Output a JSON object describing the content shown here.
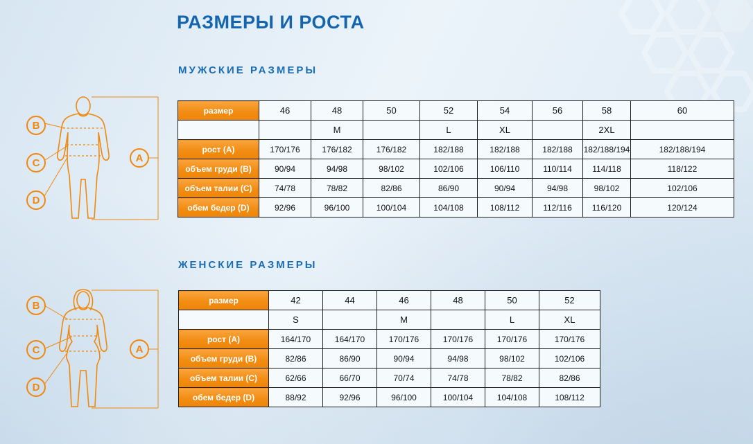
{
  "page": {
    "title": "РАЗМЕРЫ И РОСТА",
    "mens_heading": "МУЖСКИЕ РАЗМЕРЫ",
    "womens_heading": "ЖЕНСКИЕ РАЗМЕРЫ"
  },
  "figure_labels": {
    "a": "A",
    "b": "B",
    "c": "C",
    "d": "D"
  },
  "colors": {
    "heading_blue": "#1565ae",
    "accent_orange": "#f7941e",
    "cell_border": "#1d1d1d"
  },
  "mens_table": {
    "header_label": "размер",
    "sizes": [
      "46",
      "48",
      "50",
      "52",
      "54",
      "56",
      "58",
      "60"
    ],
    "letters": [
      "",
      "M",
      "",
      "L",
      "XL",
      "",
      "2XL",
      ""
    ],
    "rows": [
      {
        "label": "рост (A)",
        "values": [
          "170/176",
          "176/182",
          "176/182",
          "182/188",
          "182/188",
          "182/188",
          "182/188/194",
          "182/188/194"
        ]
      },
      {
        "label": "объем груди (B)",
        "values": [
          "90/94",
          "94/98",
          "98/102",
          "102/106",
          "106/110",
          "110/114",
          "114/118",
          "118/122"
        ]
      },
      {
        "label": "объем талии (C)",
        "values": [
          "74/78",
          "78/82",
          "82/86",
          "86/90",
          "90/94",
          "94/98",
          "98/102",
          "102/106"
        ]
      },
      {
        "label": "обем бедер (D)",
        "values": [
          "92/96",
          "96/100",
          "100/104",
          "104/108",
          "108/112",
          "112/116",
          "116/120",
          "120/124"
        ]
      }
    ]
  },
  "womens_table": {
    "header_label": "размер",
    "sizes": [
      "42",
      "44",
      "46",
      "48",
      "50",
      "52"
    ],
    "letters": [
      "S",
      "",
      "M",
      "",
      "L",
      "XL"
    ],
    "rows": [
      {
        "label": "рост (A)",
        "values": [
          "164/170",
          "164/170",
          "170/176",
          "170/176",
          "170/176",
          "170/176"
        ]
      },
      {
        "label": "объем груди (B)",
        "values": [
          "82/86",
          "86/90",
          "90/94",
          "94/98",
          "98/102",
          "102/106"
        ]
      },
      {
        "label": "объем талии (C)",
        "values": [
          "62/66",
          "66/70",
          "70/74",
          "74/78",
          "78/82",
          "82/86"
        ]
      },
      {
        "label": "обем бедер (D)",
        "values": [
          "88/92",
          "92/96",
          "96/100",
          "100/104",
          "104/108",
          "108/112"
        ]
      }
    ]
  }
}
